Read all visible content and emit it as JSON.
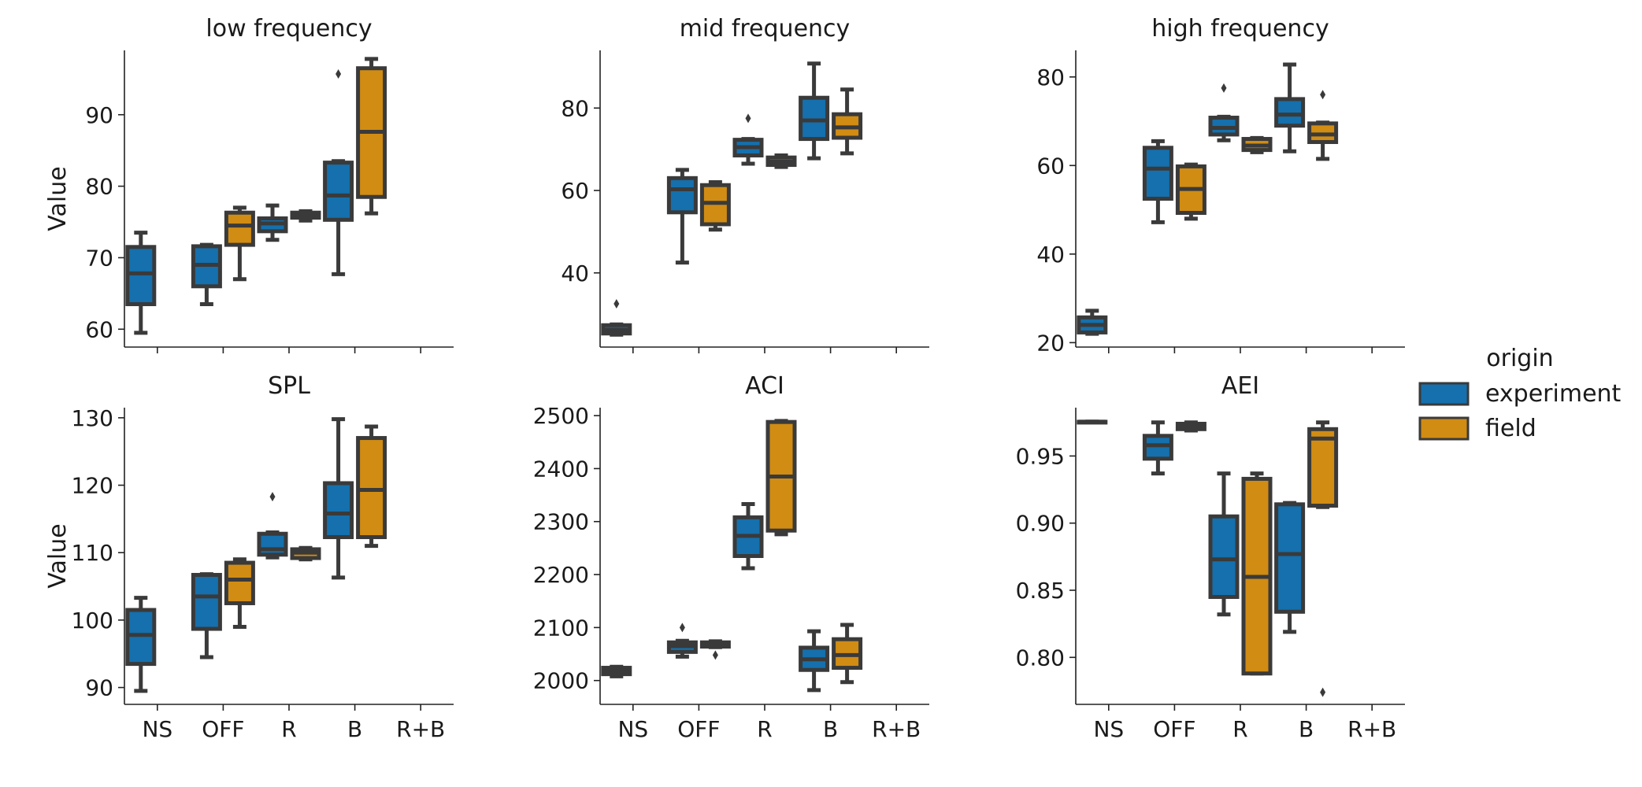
{
  "colors": {
    "experiment": "#1570ad",
    "field": "#d18c13",
    "edge": "#3a3a3a"
  },
  "legend": {
    "title": "origin",
    "items": [
      {
        "label": "experiment",
        "color": "#1570ad"
      },
      {
        "label": "field",
        "color": "#d18c13"
      }
    ],
    "placement": "right"
  },
  "chart_data": [
    {
      "type": "box",
      "title": "low frequency",
      "ylabel": "Value",
      "categories": [
        "NS",
        "OFF",
        "R",
        "B",
        "R+B"
      ],
      "ylim": [
        57.5,
        99
      ],
      "yticks": [
        60,
        70,
        80,
        90
      ],
      "series": [
        {
          "name": "experiment",
          "boxes": [
            {
              "category": "NS",
              "whislo": 59.5,
              "q1": 63.5,
              "med": 67.8,
              "q3": 71.5,
              "whishi": 73.5,
              "fliers": []
            },
            {
              "category": "OFF",
              "whislo": 63.5,
              "q1": 66.0,
              "med": 69.0,
              "q3": 71.6,
              "whishi": 71.8,
              "fliers": []
            },
            {
              "category": "R",
              "whislo": 72.5,
              "q1": 73.7,
              "med": 74.8,
              "q3": 75.5,
              "whishi": 77.3,
              "fliers": []
            },
            {
              "category": "B",
              "whislo": 67.7,
              "q1": 75.3,
              "med": 78.7,
              "q3": 83.3,
              "whishi": 83.5,
              "fliers": [
                95.7
              ]
            }
          ]
        },
        {
          "name": "field",
          "boxes": [
            {
              "category": "OFF",
              "whislo": 67.0,
              "q1": 71.8,
              "med": 74.5,
              "q3": 76.3,
              "whishi": 77.0,
              "fliers": []
            },
            {
              "category": "R",
              "whislo": 75.2,
              "q1": 75.6,
              "med": 76.0,
              "q3": 76.3,
              "whishi": 76.5,
              "fliers": []
            },
            {
              "category": "B",
              "whislo": 76.2,
              "q1": 78.5,
              "med": 87.6,
              "q3": 96.5,
              "whishi": 97.8,
              "fliers": []
            }
          ]
        }
      ]
    },
    {
      "type": "box",
      "title": "mid frequency",
      "ylabel": "",
      "categories": [
        "NS",
        "OFF",
        "R",
        "B",
        "R+B"
      ],
      "ylim": [
        22,
        94
      ],
      "yticks": [
        40,
        60,
        80
      ],
      "series": [
        {
          "name": "experiment",
          "boxes": [
            {
              "category": "NS",
              "whislo": 25.0,
              "q1": 25.3,
              "med": 26.2,
              "q3": 27.3,
              "whishi": 27.5,
              "fliers": [
                32.5
              ]
            },
            {
              "category": "OFF",
              "whislo": 42.5,
              "q1": 54.7,
              "med": 60.3,
              "q3": 63.0,
              "whishi": 65.0,
              "fliers": []
            },
            {
              "category": "R",
              "whislo": 66.5,
              "q1": 68.5,
              "med": 70.5,
              "q3": 72.3,
              "whishi": 72.5,
              "fliers": [
                77.5
              ]
            },
            {
              "category": "B",
              "whislo": 67.8,
              "q1": 72.5,
              "med": 77.0,
              "q3": 82.5,
              "whishi": 90.8,
              "fliers": []
            }
          ]
        },
        {
          "name": "field",
          "boxes": [
            {
              "category": "OFF",
              "whislo": 50.5,
              "q1": 51.8,
              "med": 57.0,
              "q3": 61.3,
              "whishi": 62.0,
              "fliers": []
            },
            {
              "category": "R",
              "whislo": 65.7,
              "q1": 66.2,
              "med": 67.0,
              "q3": 68.0,
              "whishi": 68.5,
              "fliers": []
            },
            {
              "category": "B",
              "whislo": 69.0,
              "q1": 72.8,
              "med": 75.3,
              "q3": 78.5,
              "whishi": 84.5,
              "fliers": []
            }
          ]
        }
      ]
    },
    {
      "type": "box",
      "title": "high frequency",
      "ylabel": "",
      "categories": [
        "NS",
        "OFF",
        "R",
        "B",
        "R+B"
      ],
      "ylim": [
        19,
        86
      ],
      "yticks": [
        20,
        40,
        60,
        80
      ],
      "series": [
        {
          "name": "experiment",
          "boxes": [
            {
              "category": "NS",
              "whislo": 22.0,
              "q1": 22.3,
              "med": 24.0,
              "q3": 25.7,
              "whishi": 27.2,
              "fliers": []
            },
            {
              "category": "OFF",
              "whislo": 47.2,
              "q1": 52.5,
              "med": 59.3,
              "q3": 64.0,
              "whishi": 65.5,
              "fliers": []
            },
            {
              "category": "R",
              "whislo": 65.7,
              "q1": 67.0,
              "med": 68.5,
              "q3": 70.8,
              "whishi": 71.0,
              "fliers": [
                77.5
              ]
            },
            {
              "category": "B",
              "whislo": 63.2,
              "q1": 69.0,
              "med": 71.5,
              "q3": 75.0,
              "whishi": 82.8,
              "fliers": []
            }
          ]
        },
        {
          "name": "field",
          "boxes": [
            {
              "category": "OFF",
              "whislo": 48.0,
              "q1": 49.3,
              "med": 54.7,
              "q3": 59.8,
              "whishi": 60.2,
              "fliers": []
            },
            {
              "category": "R",
              "whislo": 63.0,
              "q1": 63.5,
              "med": 64.5,
              "q3": 66.0,
              "whishi": 66.2,
              "fliers": []
            },
            {
              "category": "B",
              "whislo": 61.5,
              "q1": 65.3,
              "med": 67.0,
              "q3": 69.5,
              "whishi": 69.7,
              "fliers": [
                76.0
              ]
            }
          ]
        }
      ]
    },
    {
      "type": "box",
      "title": "SPL",
      "ylabel": "Value",
      "categories": [
        "NS",
        "OFF",
        "R",
        "B",
        "R+B"
      ],
      "ylim": [
        87.5,
        131.5
      ],
      "yticks": [
        90,
        100,
        110,
        120,
        130
      ],
      "series": [
        {
          "name": "experiment",
          "boxes": [
            {
              "category": "NS",
              "whislo": 89.5,
              "q1": 93.5,
              "med": 97.8,
              "q3": 101.5,
              "whishi": 103.3,
              "fliers": []
            },
            {
              "category": "OFF",
              "whislo": 94.5,
              "q1": 98.7,
              "med": 103.5,
              "q3": 106.7,
              "whishi": 106.8,
              "fliers": []
            },
            {
              "category": "R",
              "whislo": 109.3,
              "q1": 109.7,
              "med": 110.5,
              "q3": 112.8,
              "whishi": 113.0,
              "fliers": [
                118.3
              ]
            },
            {
              "category": "B",
              "whislo": 106.3,
              "q1": 112.3,
              "med": 115.8,
              "q3": 120.3,
              "whishi": 129.8,
              "fliers": []
            }
          ]
        },
        {
          "name": "field",
          "boxes": [
            {
              "category": "OFF",
              "whislo": 99.0,
              "q1": 102.5,
              "med": 106.0,
              "q3": 108.5,
              "whishi": 109.0,
              "fliers": []
            },
            {
              "category": "R",
              "whislo": 109.0,
              "q1": 109.2,
              "med": 110.0,
              "q3": 110.5,
              "whishi": 110.7,
              "fliers": []
            },
            {
              "category": "B",
              "whislo": 111.0,
              "q1": 112.3,
              "med": 119.3,
              "q3": 127.0,
              "whishi": 128.7,
              "fliers": []
            }
          ]
        }
      ]
    },
    {
      "type": "box",
      "title": "ACI",
      "ylabel": "",
      "categories": [
        "NS",
        "OFF",
        "R",
        "B",
        "R+B"
      ],
      "ylim": [
        1955,
        2515
      ],
      "yticks": [
        2000,
        2100,
        2200,
        2300,
        2400,
        2500
      ],
      "series": [
        {
          "name": "experiment",
          "boxes": [
            {
              "category": "NS",
              "whislo": 2008,
              "q1": 2012,
              "med": 2018,
              "q3": 2024,
              "whishi": 2026,
              "fliers": []
            },
            {
              "category": "OFF",
              "whislo": 2045,
              "q1": 2054,
              "med": 2065,
              "q3": 2072,
              "whishi": 2075,
              "fliers": [
                2100
              ]
            },
            {
              "category": "R",
              "whislo": 2212,
              "q1": 2235,
              "med": 2273,
              "q3": 2308,
              "whishi": 2333,
              "fliers": []
            },
            {
              "category": "B",
              "whislo": 1982,
              "q1": 2020,
              "med": 2040,
              "q3": 2062,
              "whishi": 2093,
              "fliers": []
            }
          ]
        },
        {
          "name": "field",
          "boxes": [
            {
              "category": "OFF",
              "whislo": 2063,
              "q1": 2064,
              "med": 2067,
              "q3": 2072,
              "whishi": 2074,
              "fliers": [
                2048
              ]
            },
            {
              "category": "R",
              "whislo": 2276,
              "q1": 2283,
              "med": 2385,
              "q3": 2488,
              "whishi": 2490,
              "fliers": []
            },
            {
              "category": "B",
              "whislo": 1997,
              "q1": 2024,
              "med": 2048,
              "q3": 2078,
              "whishi": 2105,
              "fliers": []
            }
          ]
        }
      ]
    },
    {
      "type": "box",
      "title": "AEI",
      "ylabel": "",
      "categories": [
        "NS",
        "OFF",
        "R",
        "B",
        "R+B"
      ],
      "ylim": [
        0.765,
        0.986
      ],
      "yticks": [
        0.8,
        0.85,
        0.9,
        0.95
      ],
      "ytick_labels": [
        "0.80",
        "0.85",
        "0.90",
        "0.95"
      ],
      "series": [
        {
          "name": "experiment",
          "boxes": [
            {
              "category": "NS",
              "whislo": 0.9755,
              "q1": 0.9755,
              "med": 0.9755,
              "q3": 0.9755,
              "whishi": 0.9755,
              "fliers": []
            },
            {
              "category": "OFF",
              "whislo": 0.937,
              "q1": 0.948,
              "med": 0.958,
              "q3": 0.965,
              "whishi": 0.975,
              "fliers": []
            },
            {
              "category": "R",
              "whislo": 0.832,
              "q1": 0.845,
              "med": 0.873,
              "q3": 0.905,
              "whishi": 0.937,
              "fliers": []
            },
            {
              "category": "B",
              "whislo": 0.819,
              "q1": 0.834,
              "med": 0.877,
              "q3": 0.914,
              "whishi": 0.915,
              "fliers": []
            }
          ]
        },
        {
          "name": "field",
          "boxes": [
            {
              "category": "OFF",
              "whislo": 0.969,
              "q1": 0.97,
              "med": 0.972,
              "q3": 0.974,
              "whishi": 0.975,
              "fliers": []
            },
            {
              "category": "R",
              "whislo": 0.788,
              "q1": 0.788,
              "med": 0.86,
              "q3": 0.933,
              "whishi": 0.937,
              "fliers": []
            },
            {
              "category": "B",
              "whislo": 0.912,
              "q1": 0.913,
              "med": 0.963,
              "q3": 0.97,
              "whishi": 0.975,
              "fliers": [
                0.774
              ]
            }
          ]
        }
      ]
    }
  ]
}
